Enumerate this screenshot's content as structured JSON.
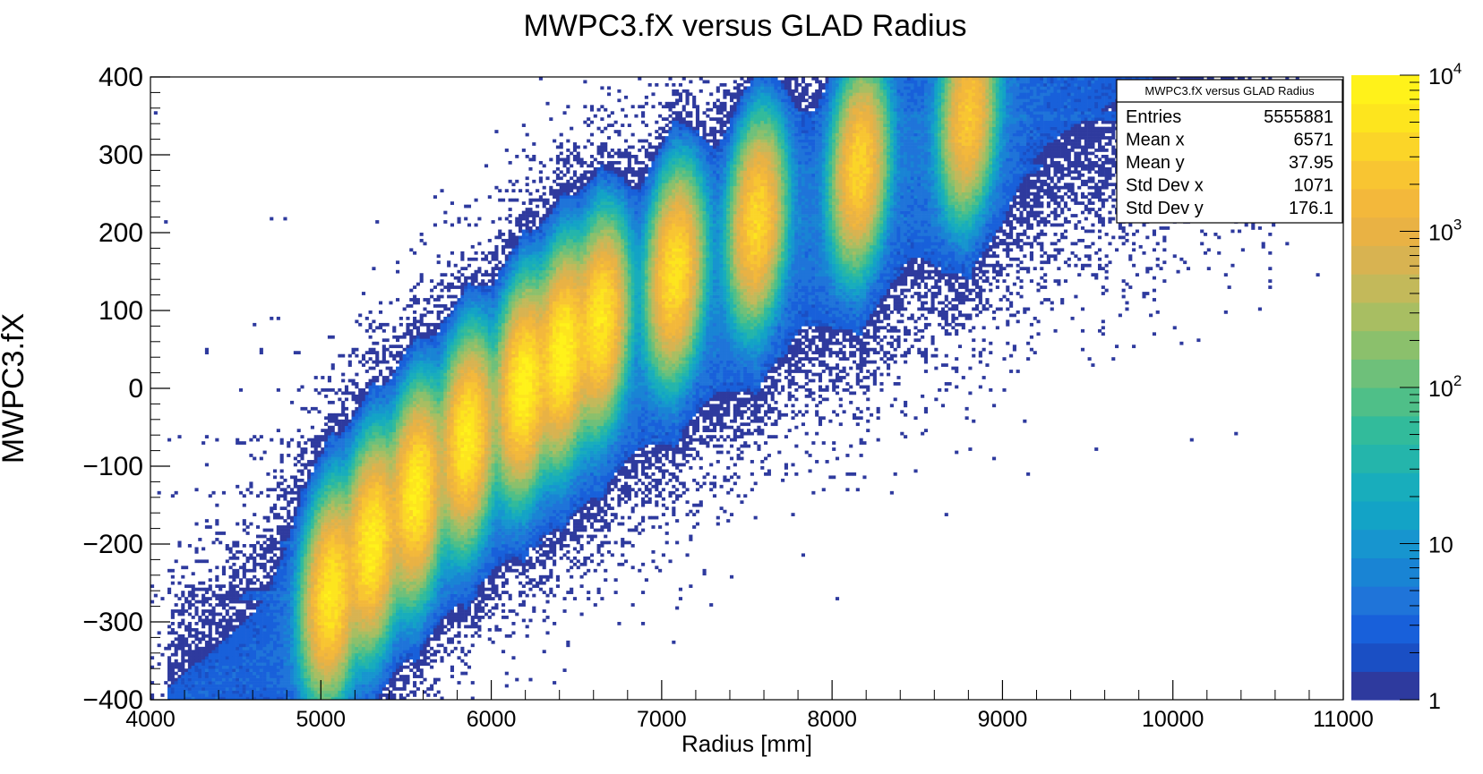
{
  "chart_data": {
    "type": "heatmap",
    "title": "MWPC3.fX versus GLAD Radius",
    "xlabel": "Radius [mm]",
    "ylabel": "MWPC3.fX",
    "xlim": [
      4000,
      11000
    ],
    "ylim": [
      -400,
      400
    ],
    "x_ticks": [
      "4000",
      "5000",
      "6000",
      "7000",
      "8000",
      "9000",
      "10000",
      "11000"
    ],
    "y_ticks": [
      "−400",
      "−300",
      "−200",
      "−100",
      "0",
      "100",
      "200",
      "300",
      "400"
    ],
    "colorbar": {
      "scale": "log",
      "range": [
        1,
        10000
      ],
      "tick_labels": [
        {
          "value": 1,
          "base": "1",
          "exp": ""
        },
        {
          "value": 10,
          "base": "10",
          "exp": ""
        },
        {
          "value": 100,
          "base": "10",
          "exp": "2"
        },
        {
          "value": 1000,
          "base": "10",
          "exp": "3"
        },
        {
          "value": 10000,
          "base": "10",
          "exp": "4"
        }
      ],
      "colors": [
        "#2e3a9e",
        "#1a4fc4",
        "#1860da",
        "#1f74d9",
        "#1984d4",
        "#1795cf",
        "#13a3c6",
        "#18adbc",
        "#24b5ab",
        "#32bb9b",
        "#4fbf88",
        "#6ec07a",
        "#8bc06c",
        "#a8be62",
        "#c3b95a",
        "#d8b351",
        "#e9b244",
        "#f3b83b",
        "#f8c532",
        "#fbd528",
        "#fde51e",
        "#fff21a"
      ]
    },
    "clusters": [
      {
        "x": 5060,
        "y": -265,
        "peak": 6000
      },
      {
        "x": 5300,
        "y": -200,
        "peak": 7000
      },
      {
        "x": 5560,
        "y": -135,
        "peak": 7000
      },
      {
        "x": 5860,
        "y": -65,
        "peak": 6500
      },
      {
        "x": 6190,
        "y": 0,
        "peak": 8000
      },
      {
        "x": 6420,
        "y": 45,
        "peak": 8000
      },
      {
        "x": 6640,
        "y": 85,
        "peak": 6000
      },
      {
        "x": 7080,
        "y": 148,
        "peak": 5000
      },
      {
        "x": 7560,
        "y": 215,
        "peak": 4000
      },
      {
        "x": 8160,
        "y": 283,
        "peak": 3500
      },
      {
        "x": 8800,
        "y": 350,
        "peak": 2500
      }
    ],
    "stats": {
      "title": "MWPC3.fX versus GLAD Radius",
      "rows": [
        {
          "label": "Entries",
          "value": "5555881"
        },
        {
          "label": "Mean x",
          "value": "6571"
        },
        {
          "label": "Mean y",
          "value": "37.95"
        },
        {
          "label": "Std Dev x",
          "value": "1071"
        },
        {
          "label": "Std Dev y",
          "value": "176.1"
        }
      ]
    }
  }
}
